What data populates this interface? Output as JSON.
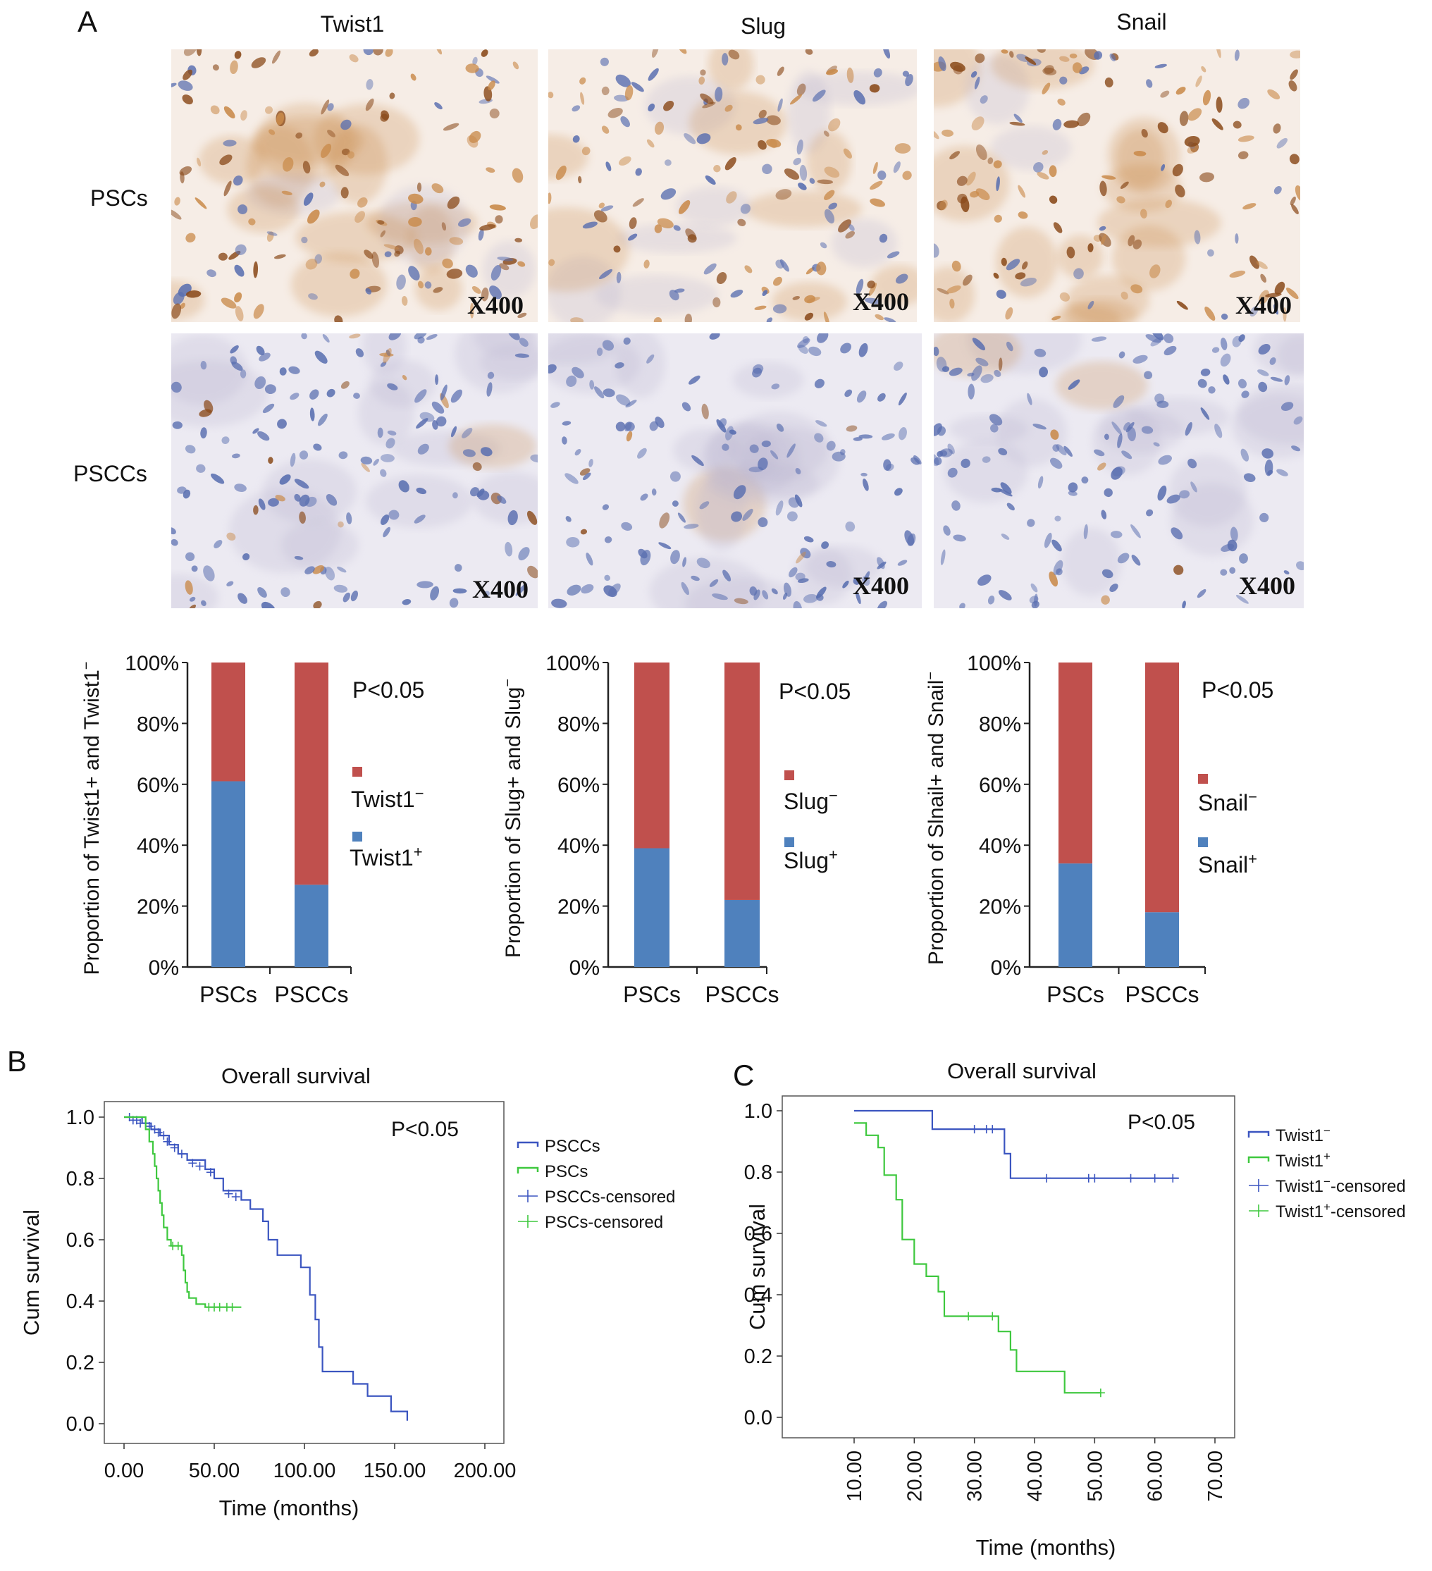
{
  "panel_letters": [
    "A",
    "B",
    "C"
  ],
  "micrographs": {
    "columns": [
      "Twist1",
      "Slug",
      "Snail"
    ],
    "rows": [
      "PSCs",
      "PSCCs"
    ],
    "magnification": "X400",
    "palette": {
      "brown_dark": "#8a4a1a",
      "brown_light": "#c98a4a",
      "blue_nuclei": "#5a6fb0",
      "background_light": "#f6ede6",
      "background_pale": "#eceaf2"
    }
  },
  "chart_data": [
    {
      "type": "bar",
      "stacked": true,
      "ylabel": "Proportion of Twist1+ and Twist1−",
      "yticks": [
        "0%",
        "20%",
        "40%",
        "60%",
        "80%",
        "100%"
      ],
      "ylim": [
        0,
        100
      ],
      "categories": [
        "PSCs",
        "PSCCs"
      ],
      "series": [
        {
          "name": "Twist1+",
          "color": "#4f81bd",
          "values": [
            61,
            27
          ]
        },
        {
          "name": "Twist1−",
          "color": "#c0504d",
          "values": [
            39,
            73
          ]
        }
      ],
      "annotation": "P<0.05"
    },
    {
      "type": "bar",
      "stacked": true,
      "ylabel": "Proportion of Slug+ and Slug−",
      "yticks": [
        "0%",
        "20%",
        "40%",
        "60%",
        "80%",
        "100%"
      ],
      "ylim": [
        0,
        100
      ],
      "categories": [
        "PSCs",
        "PSCCs"
      ],
      "series": [
        {
          "name": "Slug+",
          "color": "#4f81bd",
          "values": [
            39,
            22
          ]
        },
        {
          "name": "Slug−",
          "color": "#c0504d",
          "values": [
            61,
            78
          ]
        }
      ],
      "annotation": "P<0.05"
    },
    {
      "type": "bar",
      "stacked": true,
      "ylabel": "Proportion of Slnail+ and Snail−",
      "yticks": [
        "0%",
        "20%",
        "40%",
        "60%",
        "80%",
        "100%"
      ],
      "ylim": [
        0,
        100
      ],
      "categories": [
        "PSCs",
        "PSCCs"
      ],
      "series": [
        {
          "name": "Snail+",
          "color": "#4f81bd",
          "values": [
            34,
            18
          ]
        },
        {
          "name": "Snail−",
          "color": "#c0504d",
          "values": [
            66,
            82
          ]
        }
      ],
      "annotation": "P<0.05"
    },
    {
      "type": "line",
      "step": true,
      "title": "Overall survival",
      "xlabel": "Time (months)",
      "ylabel": "Cum survival",
      "xlim": [
        0,
        200
      ],
      "ylim": [
        0,
        1
      ],
      "xticks": [
        0,
        50,
        100,
        150,
        200
      ],
      "xtick_labels": [
        "0.00",
        "50.00",
        "100.00",
        "150.00",
        "200.00"
      ],
      "yticks": [
        "0.0",
        "0.2",
        "0.4",
        "0.6",
        "0.8",
        "1.0"
      ],
      "annotation": "P<0.05",
      "legend": [
        "PSCCs",
        "PSCs",
        "PSCCs-censored",
        "PSCs-censored"
      ],
      "series": [
        {
          "name": "PSCCs",
          "color": "#3b55c0",
          "steps": [
            [
              0,
              1.0
            ],
            [
              10,
              0.98
            ],
            [
              15,
              0.96
            ],
            [
              20,
              0.94
            ],
            [
              25,
              0.91
            ],
            [
              30,
              0.88
            ],
            [
              35,
              0.86
            ],
            [
              45,
              0.83
            ],
            [
              50,
              0.8
            ],
            [
              55,
              0.76
            ],
            [
              65,
              0.73
            ],
            [
              70,
              0.7
            ],
            [
              77,
              0.66
            ],
            [
              80,
              0.6
            ],
            [
              85,
              0.55
            ],
            [
              98,
              0.51
            ],
            [
              103,
              0.42
            ],
            [
              106,
              0.34
            ],
            [
              108,
              0.25
            ],
            [
              110,
              0.17
            ],
            [
              127,
              0.13
            ],
            [
              135,
              0.09
            ],
            [
              148,
              0.04
            ],
            [
              157,
              0.01
            ]
          ],
          "end": 157,
          "censored": [
            [
              3,
              1.0
            ],
            [
              5,
              0.99
            ],
            [
              7,
              0.99
            ],
            [
              9,
              0.98
            ],
            [
              12,
              0.98
            ],
            [
              14,
              0.97
            ],
            [
              17,
              0.96
            ],
            [
              19,
              0.95
            ],
            [
              22,
              0.94
            ],
            [
              24,
              0.92
            ],
            [
              28,
              0.9
            ],
            [
              32,
              0.88
            ],
            [
              38,
              0.85
            ],
            [
              42,
              0.84
            ],
            [
              48,
              0.82
            ],
            [
              58,
              0.75
            ],
            [
              62,
              0.74
            ]
          ]
        },
        {
          "name": "PSCs",
          "color": "#3ec83e",
          "steps": [
            [
              0,
              1.0
            ],
            [
              12,
              0.96
            ],
            [
              14,
              0.92
            ],
            [
              16,
              0.88
            ],
            [
              17,
              0.84
            ],
            [
              18,
              0.8
            ],
            [
              19,
              0.76
            ],
            [
              20,
              0.72
            ],
            [
              21,
              0.68
            ],
            [
              22,
              0.64
            ],
            [
              24,
              0.6
            ],
            [
              26,
              0.58
            ],
            [
              32,
              0.55
            ],
            [
              33,
              0.5
            ],
            [
              34,
              0.46
            ],
            [
              35,
              0.43
            ],
            [
              36,
              0.41
            ],
            [
              40,
              0.39
            ],
            [
              45,
              0.38
            ]
          ],
          "end": 65,
          "censored": [
            [
              27,
              0.58
            ],
            [
              30,
              0.58
            ],
            [
              47,
              0.38
            ],
            [
              50,
              0.38
            ],
            [
              53,
              0.38
            ],
            [
              57,
              0.38
            ],
            [
              60,
              0.38
            ]
          ]
        }
      ]
    },
    {
      "type": "line",
      "step": true,
      "title": "Overall survival",
      "xlabel": "Time (months)",
      "ylabel": "Cum survival",
      "xlim": [
        10,
        70
      ],
      "ylim": [
        0,
        1
      ],
      "xticks": [
        10,
        20,
        30,
        40,
        50,
        60,
        70
      ],
      "xtick_labels": [
        "10.00",
        "20.00",
        "30.00",
        "40.00",
        "50.00",
        "60.00",
        "70.00"
      ],
      "yticks": [
        "0.0",
        "0.2",
        "0.4",
        "0.6",
        "0.8",
        "1.0"
      ],
      "annotation": "P<0.05",
      "legend": [
        "Twist1−",
        "Twist1+",
        "Twist1−-censored",
        "Twist1+-censored"
      ],
      "series": [
        {
          "name": "Twist1−",
          "color": "#3b55c0",
          "steps": [
            [
              10,
              1.0
            ],
            [
              23,
              0.94
            ],
            [
              35,
              0.86
            ],
            [
              36,
              0.78
            ]
          ],
          "end": 64,
          "censored": [
            [
              30,
              0.94
            ],
            [
              32,
              0.94
            ],
            [
              33,
              0.94
            ],
            [
              42,
              0.78
            ],
            [
              49,
              0.78
            ],
            [
              50,
              0.78
            ],
            [
              56,
              0.78
            ],
            [
              60,
              0.78
            ],
            [
              63,
              0.78
            ]
          ]
        },
        {
          "name": "Twist1+",
          "color": "#3ec83e",
          "steps": [
            [
              10,
              0.96
            ],
            [
              12,
              0.92
            ],
            [
              14,
              0.88
            ],
            [
              15,
              0.79
            ],
            [
              17,
              0.71
            ],
            [
              18,
              0.58
            ],
            [
              20,
              0.5
            ],
            [
              22,
              0.46
            ],
            [
              24,
              0.41
            ],
            [
              25,
              0.33
            ],
            [
              34,
              0.28
            ],
            [
              36,
              0.22
            ],
            [
              37,
              0.15
            ],
            [
              45,
              0.08
            ]
          ],
          "end": 51,
          "censored": [
            [
              29,
              0.33
            ],
            [
              33,
              0.33
            ],
            [
              51,
              0.08
            ]
          ]
        }
      ]
    }
  ]
}
